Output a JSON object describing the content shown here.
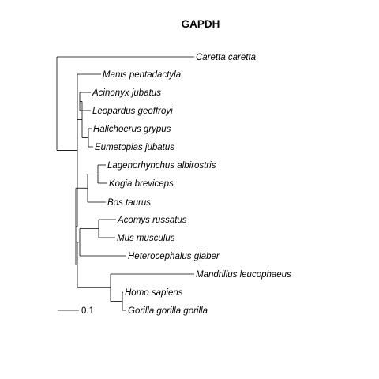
{
  "title": "GAPDH",
  "scale_bar": {
    "label": "0.1",
    "length": 0.1
  },
  "colors": {
    "branch": "#000000",
    "highlight_branch": "#cc3377"
  },
  "tips": [
    {
      "id": "caretta",
      "label": "Caretta caretta"
    },
    {
      "id": "manis",
      "label": "Manis pentadactyla"
    },
    {
      "id": "acinonyx",
      "label": "Acinonyx jubatus"
    },
    {
      "id": "leopardus",
      "label": "Leopardus geoffroyi"
    },
    {
      "id": "halichoerus",
      "label": "Halichoerus grypus"
    },
    {
      "id": "eumetopias",
      "label": "Eumetopias jubatus"
    },
    {
      "id": "lagenorhynchus",
      "label": "Lagenorhynchus albirostris"
    },
    {
      "id": "kogia",
      "label": "Kogia breviceps"
    },
    {
      "id": "bos",
      "label": "Bos taurus"
    },
    {
      "id": "acomys",
      "label": "Acomys russatus"
    },
    {
      "id": "mus",
      "label": "Mus musculus"
    },
    {
      "id": "heterocephalus",
      "label": "Heterocephalus glaber"
    },
    {
      "id": "mandrillus",
      "label": "Mandrillus leucophaeus"
    },
    {
      "id": "homo",
      "label": "Homo sapiens"
    },
    {
      "id": "gorilla",
      "label": "Gorilla gorilla gorilla"
    }
  ]
}
